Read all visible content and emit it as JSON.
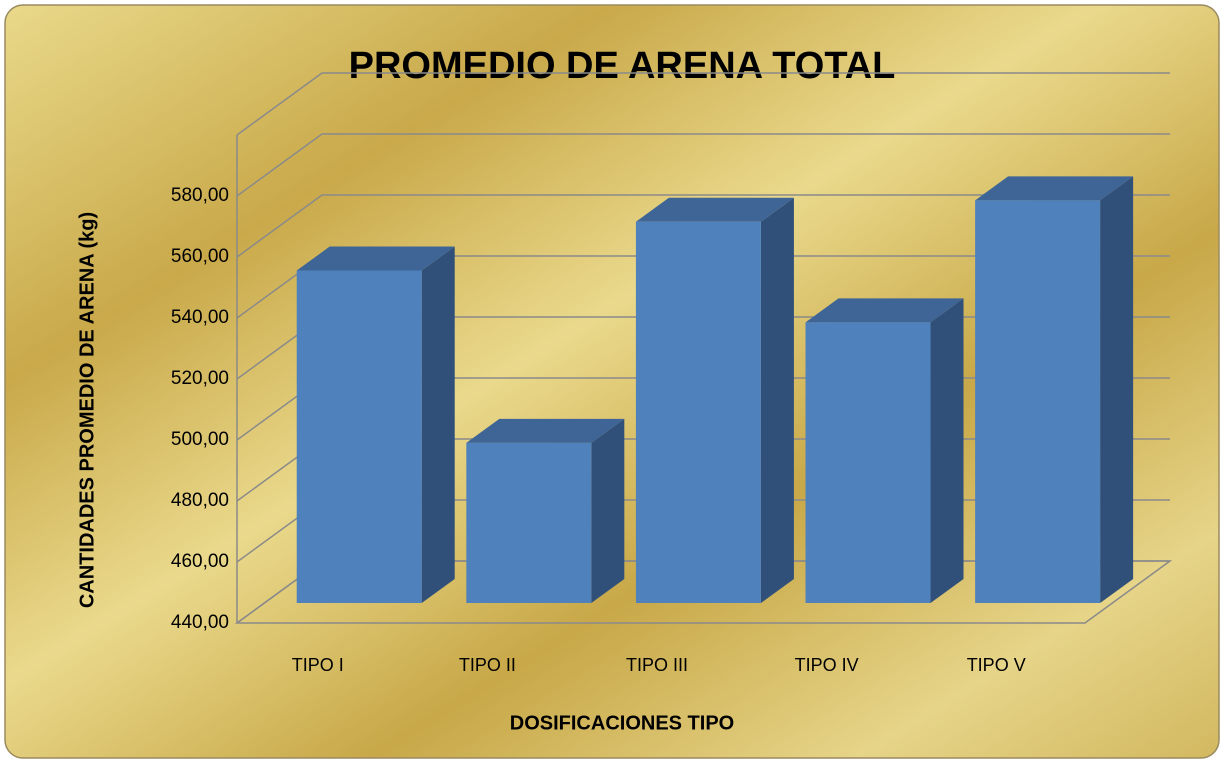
{
  "chart_data": {
    "type": "bar3d",
    "title": "PROMEDIO DE ARENA TOTAL",
    "x_label": "DOSIFICACIONES  TIPO",
    "y_label": "CANTIDADES PROMEDIO DE ARENA (kg)",
    "categories": [
      "TIPO I",
      "TIPO II",
      "TIPO III",
      "TIPO IV",
      "TIPO V"
    ],
    "values": [
      549,
      492.5,
      565,
      532,
      572
    ],
    "color": "#4f81bd",
    "ylim": [
      440,
      600
    ],
    "yticks": [
      {
        "value": 440,
        "label": "440,00"
      },
      {
        "value": 460,
        "label": "460,00"
      },
      {
        "value": 480,
        "label": "480,00"
      },
      {
        "value": 500,
        "label": "500,00"
      },
      {
        "value": 520,
        "label": "520,00"
      },
      {
        "value": 540,
        "label": "540,00"
      },
      {
        "value": 560,
        "label": "560,00"
      },
      {
        "value": 580,
        "label": "580,00"
      }
    ],
    "grid": true
  }
}
